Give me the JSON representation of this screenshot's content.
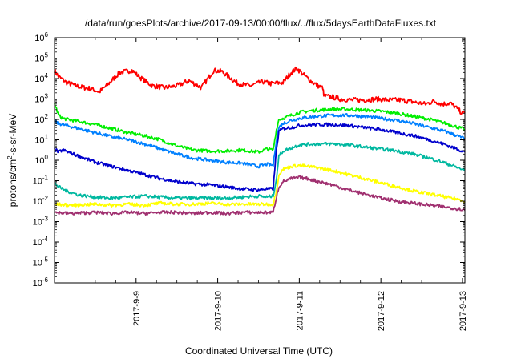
{
  "chart_data": {
    "type": "line",
    "title": "/data/run/goesPlots/archive/2017-09-13/00:00/flux/../flux/5daysEarthDataFluxes.txt",
    "xlabel": "Coordinated Universal Time (UTC)",
    "ylabel": "protons/cm^2-s-sr-MeV",
    "y_scale": "log",
    "ylim_exp": [
      -6,
      6
    ],
    "xlim": [
      0,
      5.03
    ],
    "grid": false,
    "x_tick_labels": [
      "2017-9-9",
      "2017-9-10",
      "2017-9-11",
      "2017-9-12",
      "2017-9-13"
    ],
    "x_tick_positions": [
      1,
      2,
      3,
      4,
      5
    ],
    "y_tick_labels": [
      {
        "base": "10",
        "exp": "-6"
      },
      {
        "base": "10",
        "exp": "-5"
      },
      {
        "base": "10",
        "exp": "-4"
      },
      {
        "base": "10",
        "exp": "-3"
      },
      {
        "base": "10",
        "exp": "-2"
      },
      {
        "base": "10",
        "exp": "-1"
      },
      {
        "base": "10",
        "exp": "0"
      },
      {
        "base": "10",
        "exp": "1"
      },
      {
        "base": "10",
        "exp": "2"
      },
      {
        "base": "10",
        "exp": "3"
      },
      {
        "base": "10",
        "exp": "4"
      },
      {
        "base": "10",
        "exp": "5"
      },
      {
        "base": "10",
        "exp": "6"
      }
    ],
    "series": [
      {
        "color": "#ff0000",
        "points": [
          [
            0,
            4.4
          ],
          [
            0.05,
            4.1
          ],
          [
            0.15,
            3.8
          ],
          [
            0.3,
            3.6
          ],
          [
            0.45,
            3.5
          ],
          [
            0.55,
            3.35
          ],
          [
            0.65,
            3.7
          ],
          [
            0.8,
            4.3
          ],
          [
            0.95,
            4.4
          ],
          [
            1.05,
            4.05
          ],
          [
            1.2,
            3.65
          ],
          [
            1.35,
            3.55
          ],
          [
            1.5,
            3.65
          ],
          [
            1.65,
            3.9
          ],
          [
            1.8,
            3.55
          ],
          [
            1.95,
            4.4
          ],
          [
            2.05,
            4.35
          ],
          [
            2.15,
            4.05
          ],
          [
            2.25,
            3.75
          ],
          [
            2.4,
            3.65
          ],
          [
            2.55,
            3.85
          ],
          [
            2.65,
            3.75
          ],
          [
            2.8,
            3.8
          ],
          [
            2.9,
            4.3
          ],
          [
            2.97,
            4.5
          ],
          [
            3.05,
            4.2
          ],
          [
            3.15,
            3.85
          ],
          [
            3.25,
            3.6
          ],
          [
            3.29,
            3.55
          ],
          [
            3.3,
            3.15
          ],
          [
            3.4,
            3.1
          ],
          [
            3.5,
            3.0
          ],
          [
            3.65,
            2.95
          ],
          [
            3.8,
            2.95
          ],
          [
            3.95,
            3.0
          ],
          [
            4.1,
            2.95
          ],
          [
            4.25,
            2.95
          ],
          [
            4.4,
            2.85
          ],
          [
            4.55,
            2.75
          ],
          [
            4.65,
            2.9
          ],
          [
            4.75,
            2.75
          ],
          [
            4.85,
            2.8
          ],
          [
            4.9,
            2.65
          ],
          [
            5.0,
            2.3
          ],
          [
            5.03,
            2.3
          ]
        ]
      },
      {
        "color": "#00ee00",
        "points": [
          [
            0,
            2.8
          ],
          [
            0.05,
            2.2
          ],
          [
            0.1,
            2.05
          ],
          [
            0.3,
            1.9
          ],
          [
            0.5,
            1.75
          ],
          [
            0.7,
            1.55
          ],
          [
            0.9,
            1.35
          ],
          [
            1.1,
            1.2
          ],
          [
            1.3,
            1.0
          ],
          [
            1.5,
            0.7
          ],
          [
            1.7,
            0.5
          ],
          [
            1.9,
            0.45
          ],
          [
            2.1,
            0.45
          ],
          [
            2.3,
            0.5
          ],
          [
            2.5,
            0.4
          ],
          [
            2.6,
            0.55
          ],
          [
            2.68,
            0.5
          ],
          [
            2.72,
            1.5
          ],
          [
            2.75,
            2.0
          ],
          [
            2.8,
            2.05
          ],
          [
            2.9,
            2.2
          ],
          [
            3.0,
            2.35
          ],
          [
            3.2,
            2.45
          ],
          [
            3.4,
            2.5
          ],
          [
            3.6,
            2.5
          ],
          [
            3.8,
            2.45
          ],
          [
            4.0,
            2.4
          ],
          [
            4.2,
            2.3
          ],
          [
            4.4,
            2.15
          ],
          [
            4.6,
            2.0
          ],
          [
            4.8,
            1.8
          ],
          [
            5.0,
            1.55
          ],
          [
            5.03,
            1.5
          ]
        ]
      },
      {
        "color": "#0080ff",
        "points": [
          [
            0,
            1.9
          ],
          [
            0.05,
            1.8
          ],
          [
            0.1,
            1.75
          ],
          [
            0.3,
            1.55
          ],
          [
            0.5,
            1.35
          ],
          [
            0.7,
            1.15
          ],
          [
            0.9,
            1.0
          ],
          [
            1.1,
            0.8
          ],
          [
            1.3,
            0.55
          ],
          [
            1.5,
            0.3
          ],
          [
            1.7,
            0.1
          ],
          [
            1.9,
            0.0
          ],
          [
            2.1,
            -0.1
          ],
          [
            2.3,
            -0.15
          ],
          [
            2.5,
            -0.3
          ],
          [
            2.6,
            -0.2
          ],
          [
            2.68,
            -0.25
          ],
          [
            2.72,
            1.0
          ],
          [
            2.75,
            1.6
          ],
          [
            2.8,
            1.8
          ],
          [
            2.9,
            1.95
          ],
          [
            3.0,
            2.05
          ],
          [
            3.2,
            2.15
          ],
          [
            3.4,
            2.2
          ],
          [
            3.6,
            2.2
          ],
          [
            3.8,
            2.15
          ],
          [
            4.0,
            2.05
          ],
          [
            4.2,
            1.95
          ],
          [
            4.4,
            1.8
          ],
          [
            4.6,
            1.6
          ],
          [
            4.8,
            1.4
          ],
          [
            5.0,
            1.1
          ],
          [
            5.03,
            1.0
          ]
        ]
      },
      {
        "color": "#0000cc",
        "points": [
          [
            0,
            0.55
          ],
          [
            0.05,
            0.4
          ],
          [
            0.1,
            0.5
          ],
          [
            0.3,
            0.2
          ],
          [
            0.5,
            -0.1
          ],
          [
            0.7,
            -0.3
          ],
          [
            0.9,
            -0.5
          ],
          [
            1.1,
            -0.7
          ],
          [
            1.3,
            -0.9
          ],
          [
            1.5,
            -1.05
          ],
          [
            1.7,
            -1.15
          ],
          [
            1.9,
            -1.2
          ],
          [
            2.1,
            -1.3
          ],
          [
            2.3,
            -1.4
          ],
          [
            2.5,
            -1.45
          ],
          [
            2.6,
            -1.4
          ],
          [
            2.68,
            -1.4
          ],
          [
            2.72,
            0.5
          ],
          [
            2.75,
            1.4
          ],
          [
            2.8,
            1.55
          ],
          [
            2.9,
            1.6
          ],
          [
            3.0,
            1.7
          ],
          [
            3.2,
            1.75
          ],
          [
            3.4,
            1.75
          ],
          [
            3.6,
            1.7
          ],
          [
            3.8,
            1.6
          ],
          [
            4.0,
            1.5
          ],
          [
            4.2,
            1.35
          ],
          [
            4.4,
            1.2
          ],
          [
            4.6,
            1.0
          ],
          [
            4.8,
            0.75
          ],
          [
            5.0,
            0.45
          ],
          [
            5.03,
            0.4
          ]
        ]
      },
      {
        "color": "#00b8a0",
        "points": [
          [
            0,
            -1.1
          ],
          [
            0.05,
            -1.3
          ],
          [
            0.15,
            -1.5
          ],
          [
            0.3,
            -1.7
          ],
          [
            0.5,
            -1.8
          ],
          [
            0.7,
            -1.85
          ],
          [
            0.9,
            -1.8
          ],
          [
            1.1,
            -1.75
          ],
          [
            1.3,
            -1.8
          ],
          [
            1.5,
            -1.85
          ],
          [
            1.7,
            -1.85
          ],
          [
            1.9,
            -1.85
          ],
          [
            2.1,
            -1.85
          ],
          [
            2.3,
            -1.8
          ],
          [
            2.5,
            -1.75
          ],
          [
            2.6,
            -1.8
          ],
          [
            2.68,
            -1.75
          ],
          [
            2.72,
            -0.9
          ],
          [
            2.75,
            0.2
          ],
          [
            2.8,
            0.45
          ],
          [
            2.9,
            0.6
          ],
          [
            3.0,
            0.75
          ],
          [
            3.2,
            0.8
          ],
          [
            3.4,
            0.8
          ],
          [
            3.6,
            0.75
          ],
          [
            3.8,
            0.65
          ],
          [
            4.0,
            0.55
          ],
          [
            4.2,
            0.45
          ],
          [
            4.4,
            0.3
          ],
          [
            4.6,
            0.1
          ],
          [
            4.8,
            -0.15
          ],
          [
            5.0,
            -0.45
          ],
          [
            5.03,
            -0.5
          ]
        ]
      },
      {
        "color": "#ffff00",
        "points": [
          [
            0,
            -2.15
          ],
          [
            0.2,
            -2.2
          ],
          [
            0.5,
            -2.15
          ],
          [
            0.7,
            -2.2
          ],
          [
            0.9,
            -2.15
          ],
          [
            1.1,
            -2.2
          ],
          [
            1.3,
            -2.1
          ],
          [
            1.5,
            -2.15
          ],
          [
            1.7,
            -2.15
          ],
          [
            1.9,
            -2.1
          ],
          [
            2.1,
            -2.15
          ],
          [
            2.3,
            -2.15
          ],
          [
            2.5,
            -2.15
          ],
          [
            2.68,
            -2.15
          ],
          [
            2.72,
            -1.5
          ],
          [
            2.75,
            -0.7
          ],
          [
            2.8,
            -0.45
          ],
          [
            2.9,
            -0.3
          ],
          [
            3.0,
            -0.25
          ],
          [
            3.2,
            -0.35
          ],
          [
            3.4,
            -0.5
          ],
          [
            3.6,
            -0.7
          ],
          [
            3.8,
            -0.9
          ],
          [
            4.0,
            -1.1
          ],
          [
            4.2,
            -1.3
          ],
          [
            4.4,
            -1.5
          ],
          [
            4.6,
            -1.65
          ],
          [
            4.8,
            -1.8
          ],
          [
            5.0,
            -1.95
          ],
          [
            5.03,
            -2.0
          ]
        ]
      },
      {
        "color": "#a03070",
        "points": [
          [
            0,
            -2.55
          ],
          [
            0.2,
            -2.6
          ],
          [
            0.5,
            -2.55
          ],
          [
            0.7,
            -2.6
          ],
          [
            0.9,
            -2.55
          ],
          [
            1.1,
            -2.6
          ],
          [
            1.3,
            -2.55
          ],
          [
            1.5,
            -2.55
          ],
          [
            1.7,
            -2.6
          ],
          [
            1.9,
            -2.55
          ],
          [
            2.1,
            -2.6
          ],
          [
            2.3,
            -2.55
          ],
          [
            2.5,
            -2.55
          ],
          [
            2.68,
            -2.55
          ],
          [
            2.72,
            -1.8
          ],
          [
            2.75,
            -1.3
          ],
          [
            2.8,
            -1.05
          ],
          [
            2.9,
            -0.9
          ],
          [
            3.0,
            -0.85
          ],
          [
            3.1,
            -0.9
          ],
          [
            3.2,
            -1.0
          ],
          [
            3.4,
            -1.2
          ],
          [
            3.6,
            -1.45
          ],
          [
            3.8,
            -1.65
          ],
          [
            4.0,
            -1.85
          ],
          [
            4.2,
            -2.0
          ],
          [
            4.4,
            -2.1
          ],
          [
            4.6,
            -2.2
          ],
          [
            4.8,
            -2.3
          ],
          [
            5.0,
            -2.4
          ],
          [
            5.03,
            -2.45
          ]
        ]
      }
    ]
  }
}
